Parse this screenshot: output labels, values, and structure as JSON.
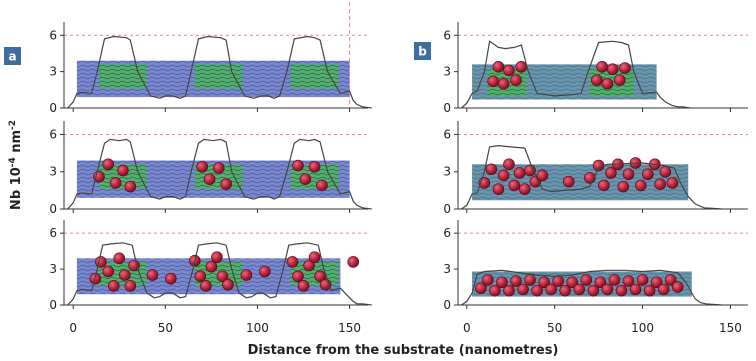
{
  "chart_data": {
    "type": "line",
    "xlabel": "Distance from the substrate (nanometres)",
    "ylabel": "Nb 10-4 nm-2",
    "ylabel_parts": {
      "base": "Nb 10",
      "exp1": "-4",
      "unit": " nm",
      "exp2": "-2"
    },
    "xlim": [
      -5,
      160
    ],
    "ylim": [
      0,
      6.6
    ],
    "xticks": [
      0,
      50,
      100,
      150
    ],
    "yticks": [
      0,
      3,
      6
    ],
    "colors": {
      "profile": "#444444",
      "blue_layer": "#5b6fc2",
      "green_layer": "#3aa64f",
      "particle": "#b8213a",
      "label_bg": "#3f6e9e",
      "dashed": "#e08a8a"
    },
    "panels": [
      {
        "label": "a",
        "rows": [
          {
            "profile": {
              "x": [
                -3,
                0,
                2,
                5,
                10,
                13,
                17,
                22,
                29,
                31,
                35,
                42,
                47,
                50,
                54,
                58,
                61,
                64,
                68,
                73,
                80,
                83,
                86,
                93,
                98,
                102,
                106,
                109,
                112,
                116,
                120,
                127,
                131,
                134,
                138,
                145,
                150,
                152,
                154,
                157,
                162
              ],
              "y": [
                0,
                0.5,
                1.2,
                1.3,
                1.2,
                3.0,
                5.7,
                5.9,
                5.8,
                5.6,
                3.0,
                1.0,
                0.8,
                1.0,
                1.0,
                0.8,
                1.0,
                3.0,
                5.7,
                5.9,
                5.8,
                5.6,
                3.0,
                1.0,
                0.8,
                1.0,
                1.0,
                0.8,
                1.0,
                3.0,
                5.7,
                5.9,
                5.8,
                5.6,
                3.0,
                1.2,
                1.4,
                0.6,
                0.3,
                0.1,
                0
              ]
            },
            "particles": []
          },
          {
            "profile": {
              "x": [
                -3,
                0,
                2,
                5,
                10,
                13,
                17,
                20,
                25,
                29,
                31,
                35,
                42,
                47,
                50,
                54,
                58,
                61,
                64,
                68,
                71,
                76,
                80,
                83,
                86,
                93,
                98,
                102,
                106,
                109,
                112,
                116,
                120,
                123,
                128,
                131,
                134,
                138,
                145,
                150,
                152,
                154,
                157,
                162
              ],
              "y": [
                0,
                0.5,
                1.2,
                1.3,
                1.2,
                3.0,
                5.3,
                5.6,
                5.5,
                5.6,
                5.4,
                3.0,
                1.0,
                0.8,
                1.0,
                1.0,
                0.8,
                1.0,
                3.0,
                5.3,
                5.6,
                5.5,
                5.6,
                5.4,
                3.0,
                1.0,
                0.8,
                1.0,
                1.0,
                0.8,
                1.0,
                3.0,
                5.3,
                5.6,
                5.5,
                5.6,
                5.4,
                3.0,
                1.2,
                1.4,
                0.6,
                0.3,
                0.1,
                0
              ]
            },
            "particles": [
              [
                14,
                2.6
              ],
              [
                19,
                3.6
              ],
              [
                23,
                2.1
              ],
              [
                27,
                3.1
              ],
              [
                31,
                1.8
              ],
              [
                70,
                3.4
              ],
              [
                74,
                2.4
              ],
              [
                79,
                3.3
              ],
              [
                83,
                2.0
              ],
              [
                122,
                3.5
              ],
              [
                126,
                2.4
              ],
              [
                131,
                3.4
              ],
              [
                135,
                1.9
              ]
            ]
          },
          {
            "profile": {
              "x": [
                -3,
                0,
                2,
                5,
                10,
                13,
                16,
                20,
                27,
                32,
                35,
                40,
                44,
                47,
                50,
                54,
                58,
                61,
                65,
                68,
                72,
                78,
                83,
                86,
                90,
                94,
                97,
                100,
                103,
                107,
                110,
                114,
                117,
                121,
                127,
                133,
                136,
                140,
                145,
                150,
                152,
                154,
                157,
                162
              ],
              "y": [
                0,
                0.5,
                1.2,
                1.3,
                1.2,
                3.0,
                5.0,
                5.1,
                5.2,
                5.0,
                3.0,
                1.0,
                0.6,
                0.7,
                1.0,
                1.0,
                0.6,
                0.7,
                3.0,
                5.0,
                5.1,
                5.2,
                5.0,
                3.0,
                1.0,
                0.6,
                0.7,
                1.0,
                1.0,
                0.6,
                0.7,
                3.0,
                5.0,
                5.1,
                5.2,
                5.0,
                3.0,
                1.2,
                1.4,
                0.6,
                0.3,
                0.1,
                0.1,
                0
              ]
            },
            "particles": [
              [
                12,
                2.2
              ],
              [
                15,
                3.6
              ],
              [
                19,
                2.8
              ],
              [
                22,
                1.6
              ],
              [
                25,
                3.9
              ],
              [
                28,
                2.5
              ],
              [
                31,
                1.6
              ],
              [
                33,
                3.3
              ],
              [
                43,
                2.5
              ],
              [
                53,
                2.2
              ],
              [
                66,
                3.7
              ],
              [
                69,
                2.4
              ],
              [
                72,
                1.6
              ],
              [
                75,
                3.2
              ],
              [
                78,
                4.0
              ],
              [
                81,
                2.4
              ],
              [
                84,
                1.7
              ],
              [
                94,
                2.5
              ],
              [
                104,
                2.8
              ],
              [
                119,
                3.6
              ],
              [
                122,
                2.4
              ],
              [
                125,
                1.6
              ],
              [
                128,
                3.3
              ],
              [
                131,
                4.0
              ],
              [
                134,
                2.4
              ],
              [
                137,
                1.7
              ],
              [
                152,
                3.6
              ]
            ]
          }
        ]
      },
      {
        "label": "b",
        "rows": [
          {
            "profile": {
              "x": [
                -3,
                0,
                3,
                6,
                10,
                13,
                18,
                22,
                27,
                31,
                35,
                40,
                50,
                60,
                65,
                69,
                75,
                83,
                88,
                92,
                95,
                100,
                108,
                110,
                113,
                117,
                120,
                123,
                127
              ],
              "y": [
                0,
                0.4,
                1.2,
                1.4,
                3.0,
                5.5,
                5.0,
                4.9,
                5.0,
                5.2,
                3.0,
                1.2,
                1.0,
                1.1,
                1.2,
                3.0,
                5.4,
                5.5,
                5.4,
                5.2,
                3.0,
                1.2,
                1.3,
                0.9,
                0.5,
                0.2,
                0.1,
                0.1,
                0
              ]
            },
            "particles": [
              [
                15,
                2.2
              ],
              [
                18,
                3.4
              ],
              [
                21,
                2.0
              ],
              [
                24,
                3.1
              ],
              [
                28,
                2.3
              ],
              [
                31,
                3.4
              ],
              [
                74,
                2.3
              ],
              [
                77,
                3.4
              ],
              [
                80,
                2.0
              ],
              [
                83,
                3.2
              ],
              [
                87,
                2.3
              ],
              [
                90,
                3.3
              ]
            ]
          },
          {
            "profile": {
              "x": [
                -3,
                0,
                3,
                6,
                10,
                13,
                18,
                25,
                33,
                38,
                43,
                48,
                55,
                65,
                70,
                75,
                80,
                100,
                112,
                118,
                122,
                126,
                130,
                135,
                140,
                145
              ],
              "y": [
                0,
                0.3,
                1.2,
                1.3,
                3.0,
                5.0,
                5.1,
                5.0,
                4.9,
                3.0,
                1.6,
                1.4,
                1.5,
                1.6,
                1.8,
                3.3,
                3.6,
                3.7,
                3.5,
                3.3,
                2.0,
                1.0,
                0.4,
                0.1,
                0.05,
                0
              ]
            },
            "particles": [
              [
                10,
                2.1
              ],
              [
                14,
                3.2
              ],
              [
                18,
                1.6
              ],
              [
                21,
                2.7
              ],
              [
                24,
                3.6
              ],
              [
                27,
                1.9
              ],
              [
                30,
                2.9
              ],
              [
                33,
                1.6
              ],
              [
                36,
                3.1
              ],
              [
                39,
                2.2
              ],
              [
                43,
                2.7
              ],
              [
                58,
                2.2
              ],
              [
                70,
                2.5
              ],
              [
                75,
                3.5
              ],
              [
                78,
                1.9
              ],
              [
                82,
                2.9
              ],
              [
                86,
                3.6
              ],
              [
                89,
                1.8
              ],
              [
                92,
                2.8
              ],
              [
                96,
                3.7
              ],
              [
                99,
                1.9
              ],
              [
                103,
                2.8
              ],
              [
                107,
                3.6
              ],
              [
                110,
                2.0
              ],
              [
                113,
                3.0
              ],
              [
                117,
                2.1
              ]
            ]
          },
          {
            "profile": {
              "x": [
                -3,
                0,
                3,
                6,
                10,
                20,
                30,
                40,
                50,
                60,
                70,
                80,
                90,
                100,
                110,
                120,
                125,
                128,
                130,
                133,
                136,
                140,
                145
              ],
              "y": [
                0,
                0.3,
                1.0,
                2.6,
                2.8,
                2.9,
                2.7,
                2.5,
                2.4,
                2.5,
                2.8,
                2.9,
                2.9,
                2.8,
                2.9,
                2.7,
                1.8,
                1.0,
                0.5,
                0.2,
                0.1,
                0.05,
                0
              ]
            },
            "particles": [
              [
                8,
                1.4
              ],
              [
                12,
                2.1
              ],
              [
                16,
                1.2
              ],
              [
                20,
                1.9
              ],
              [
                24,
                1.2
              ],
              [
                28,
                2.0
              ],
              [
                32,
                1.3
              ],
              [
                36,
                2.1
              ],
              [
                40,
                1.2
              ],
              [
                44,
                1.9
              ],
              [
                48,
                1.3
              ],
              [
                52,
                2.0
              ],
              [
                56,
                1.2
              ],
              [
                60,
                1.9
              ],
              [
                64,
                1.3
              ],
              [
                68,
                2.1
              ],
              [
                72,
                1.2
              ],
              [
                76,
                1.9
              ],
              [
                80,
                1.3
              ],
              [
                84,
                2.1
              ],
              [
                88,
                1.2
              ],
              [
                92,
                2.0
              ],
              [
                96,
                1.3
              ],
              [
                100,
                2.1
              ],
              [
                104,
                1.2
              ],
              [
                108,
                1.9
              ],
              [
                112,
                1.3
              ],
              [
                116,
                2.1
              ],
              [
                120,
                1.5
              ]
            ]
          }
        ]
      }
    ]
  }
}
